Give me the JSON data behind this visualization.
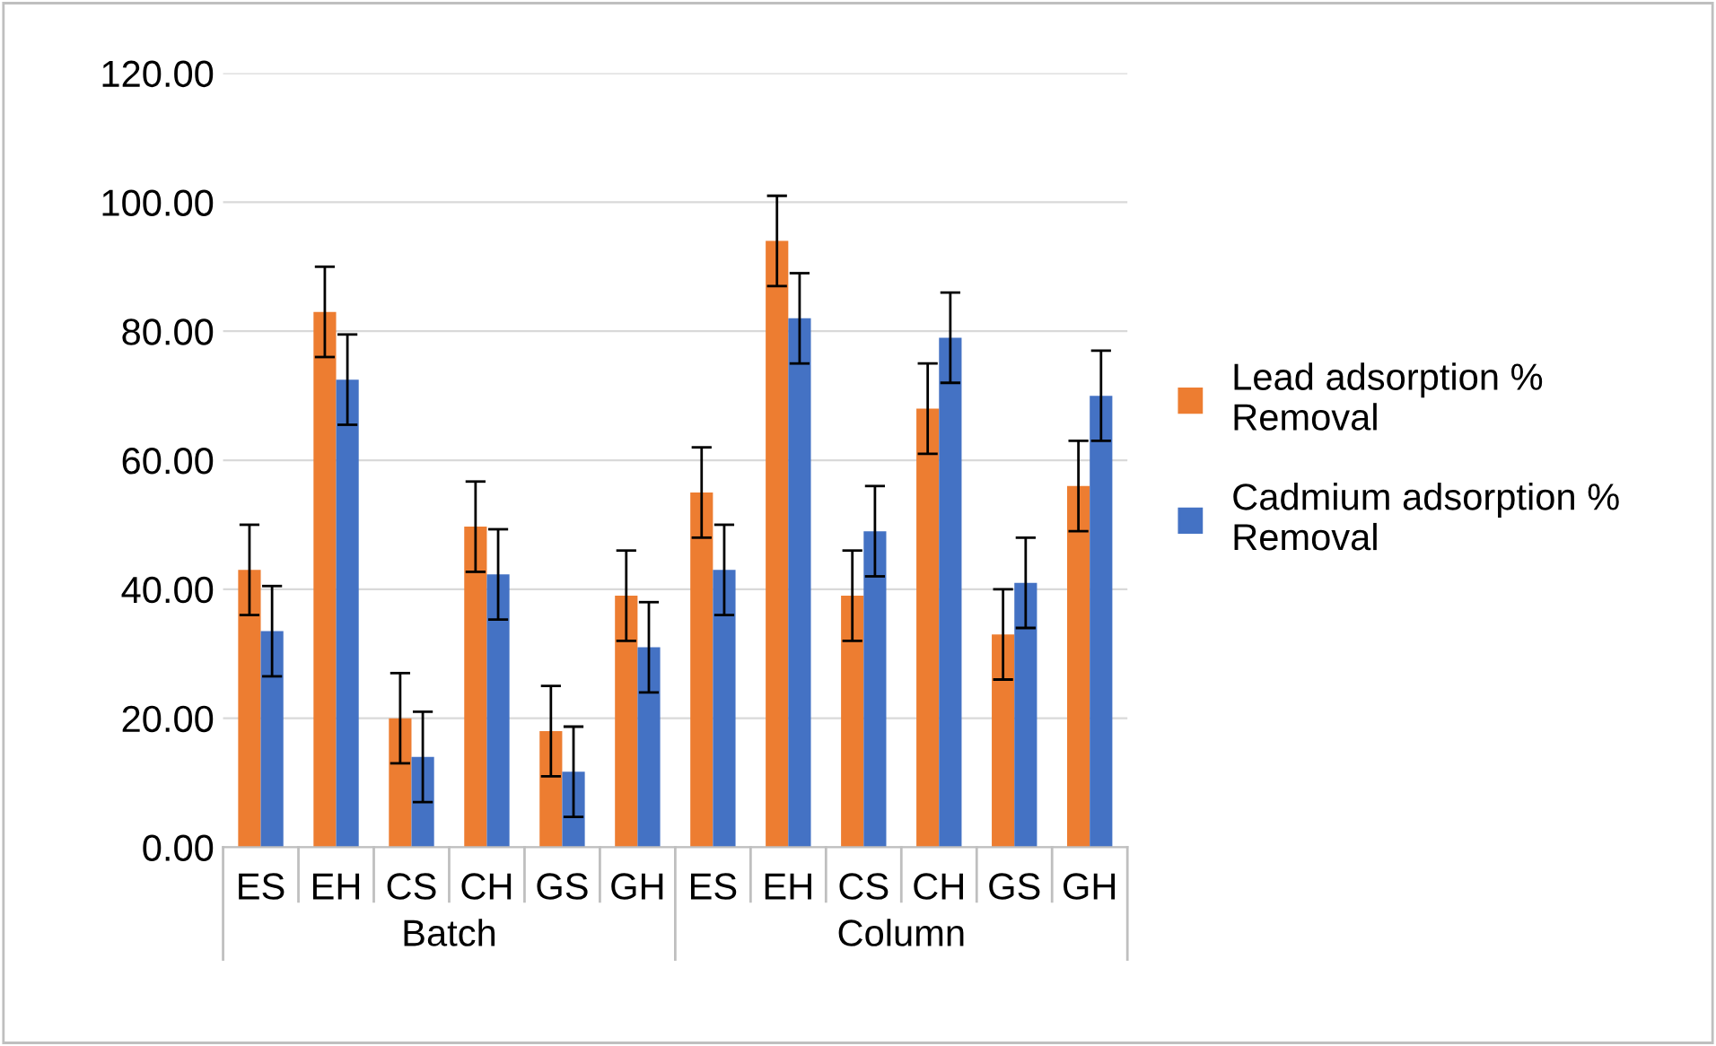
{
  "chart_data": {
    "type": "bar",
    "categories": [
      "ES",
      "EH",
      "CS",
      "CH",
      "GS",
      "GH",
      "ES",
      "EH",
      "CS",
      "CH",
      "GS",
      "GH"
    ],
    "series": [
      {
        "name": "Lead adsorption %\nRemoval",
        "color": "#ed7d31",
        "values": [
          43,
          83,
          20,
          49.7,
          18,
          39,
          55,
          94,
          39,
          68,
          33,
          56
        ],
        "errors": [
          7,
          7,
          7,
          7,
          7,
          7,
          7,
          7,
          7,
          7,
          7,
          7
        ]
      },
      {
        "name": "Cadmium adsorption %\nRemoval",
        "color": "#4472c4",
        "values": [
          33.5,
          72.5,
          14,
          42.3,
          11.7,
          31,
          43,
          82,
          49,
          79,
          41,
          70
        ],
        "errors": [
          7,
          7,
          7,
          7,
          7,
          7,
          7,
          7,
          7,
          7,
          7,
          7
        ]
      }
    ],
    "annotations": [
      "Batch",
      "Column"
    ],
    "ylim": [
      0,
      120
    ],
    "yticks": [
      {
        "value": 0,
        "label": "0.00"
      },
      {
        "value": 20,
        "label": "20.00"
      },
      {
        "value": 40,
        "label": "40.00"
      },
      {
        "value": 60,
        "label": "60.00"
      },
      {
        "value": 80,
        "label": "80.00"
      },
      {
        "value": 100,
        "label": "100.00"
      },
      {
        "value": 120,
        "label": "120.00"
      }
    ],
    "grid": "y",
    "legend": "right"
  }
}
